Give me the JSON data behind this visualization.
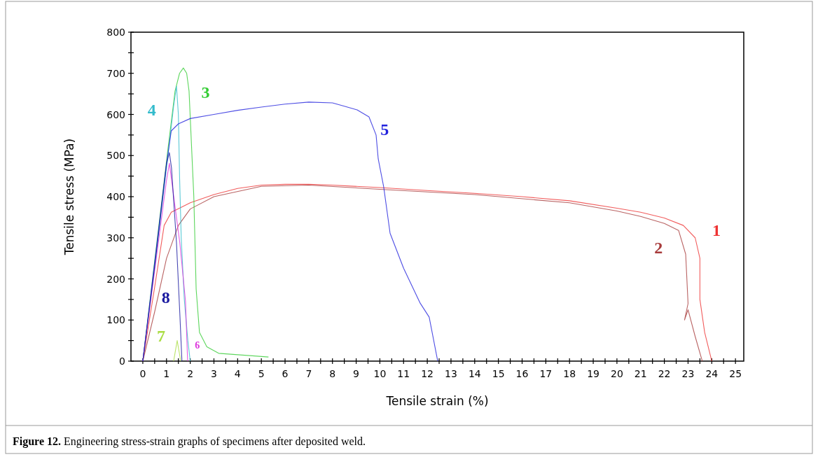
{
  "chart_data": {
    "type": "line",
    "xlabel": "Tensile strain (%)",
    "ylabel": "Tensile stress (MPa)",
    "annotations": [
      "Figure 12. Engineering stress-strain graphs of specimens after deposited weld."
    ],
    "xlim": [
      -0.5,
      25.35
    ],
    "ylim": [
      0,
      800
    ],
    "xticks": [
      0,
      {
        "value": 0.5,
        "label": null
      },
      1,
      {
        "value": 1.5,
        "label": null
      },
      2,
      {
        "value": 2.5,
        "label": null
      },
      3,
      {
        "value": 3.5,
        "label": null
      },
      4,
      {
        "value": 4.5,
        "label": null
      },
      5,
      {
        "value": 5.5,
        "label": null
      },
      6,
      {
        "value": 6.5,
        "label": null
      },
      7,
      {
        "value": 7.5,
        "label": null
      },
      8,
      {
        "value": 8.5,
        "label": null
      },
      9,
      {
        "value": 9.5,
        "label": null
      },
      10,
      {
        "value": 10.5,
        "label": null
      },
      11,
      {
        "value": 11.5,
        "label": null
      },
      12,
      {
        "value": 12.5,
        "label": null
      },
      13,
      {
        "value": 13.5,
        "label": null
      },
      14,
      {
        "value": 14.5,
        "label": null
      },
      15,
      {
        "value": 15.5,
        "label": null
      },
      16,
      {
        "value": 16.5,
        "label": null
      },
      17,
      {
        "value": 17.5,
        "label": null
      },
      18,
      {
        "value": 18.5,
        "label": null
      },
      19,
      {
        "value": 19.5,
        "label": null
      },
      20,
      {
        "value": 20.5,
        "label": null
      },
      21,
      {
        "value": 21.5,
        "label": null
      },
      22,
      {
        "value": 22.5,
        "label": null
      },
      23,
      {
        "value": 23.5,
        "label": null
      },
      24,
      {
        "value": 24.5,
        "label": null
      },
      25
    ],
    "yticks": [
      0,
      {
        "value": 50,
        "label": null
      },
      100,
      {
        "value": 150,
        "label": null
      },
      200,
      {
        "value": 250,
        "label": null
      },
      300,
      {
        "value": 350,
        "label": null
      },
      400,
      {
        "value": 450,
        "label": null
      },
      500,
      {
        "value": 550,
        "label": null
      },
      600,
      {
        "value": 650,
        "label": null
      },
      700,
      {
        "value": 750,
        "label": null
      },
      800
    ],
    "grid": false,
    "marker": "none",
    "line_style": "solid",
    "series": [
      {
        "name": "1",
        "color": "#ee3333",
        "x": [
          0,
          0.5,
          0.9,
          1.2,
          2,
          3,
          4,
          5,
          6,
          7,
          8,
          10,
          12,
          14,
          16,
          18,
          20,
          21,
          22,
          22.8,
          23.3,
          23.5,
          23.5,
          23.7,
          24.0
        ],
        "values": [
          0,
          180,
          330,
          362,
          385,
          405,
          420,
          428,
          430,
          430,
          428,
          422,
          415,
          408,
          400,
          390,
          372,
          362,
          348,
          330,
          300,
          250,
          150,
          70,
          0
        ]
      },
      {
        "name": "2",
        "color": "#a83c3c",
        "x": [
          0,
          0.5,
          1,
          1.5,
          2,
          3,
          5,
          7,
          10,
          14,
          18,
          20,
          21,
          22,
          22.6,
          22.9,
          23.0,
          22.85,
          23.0,
          23.3,
          23.6
        ],
        "values": [
          0,
          120,
          250,
          330,
          370,
          400,
          425,
          428,
          418,
          405,
          385,
          365,
          352,
          335,
          318,
          260,
          140,
          100,
          125,
          60,
          0
        ]
      },
      {
        "name": "3",
        "color": "#33cc33",
        "x": [
          0,
          1.06,
          1.36,
          1.55,
          1.71,
          1.85,
          1.95,
          2.15,
          2.25,
          2.39,
          2.7,
          3.2,
          5.3
        ],
        "values": [
          0,
          516,
          657,
          700,
          713,
          700,
          657,
          402,
          175,
          70,
          35,
          19,
          10
        ]
      },
      {
        "name": "4",
        "color": "#33bbcc",
        "x": [
          0,
          0.5,
          1,
          1.3,
          1.42,
          1.5,
          1.55,
          1.62,
          1.75,
          1.9,
          2.0
        ],
        "values": [
          0,
          230,
          470,
          620,
          669,
          600,
          450,
          300,
          150,
          50,
          0
        ]
      },
      {
        "name": "5",
        "color": "#2222dd",
        "x": [
          0,
          0.5,
          1,
          1.2,
          1.5,
          2,
          3,
          4,
          5,
          6,
          7,
          8,
          8.5,
          9.04,
          9.54,
          9.84,
          9.93,
          10.16,
          10.43,
          11.0,
          11.7,
          12.08,
          12.44
        ],
        "values": [
          0,
          240,
          480,
          560,
          577,
          590,
          600,
          610,
          618,
          625,
          630,
          628,
          620,
          611,
          594,
          550,
          492,
          424,
          311,
          226,
          141,
          107,
          0
        ]
      },
      {
        "name": "6",
        "color": "#dd33dd",
        "x": [
          0,
          0.5,
          1.0,
          1.12,
          1.56,
          1.8,
          1.89
        ],
        "values": [
          0,
          220,
          440,
          481,
          288,
          146,
          0
        ]
      },
      {
        "name": "7",
        "color": "#aadd44",
        "x": [
          1.3,
          1.45,
          1.6
        ],
        "values": [
          0,
          50,
          0
        ]
      },
      {
        "name": "8",
        "color": "#1a1aa0",
        "x": [
          0,
          0.5,
          1,
          1.12,
          1.21,
          1.42,
          1.56,
          1.65
        ],
        "values": [
          0,
          230,
          480,
          507,
          470,
          288,
          117,
          0
        ]
      }
    ]
  }
}
